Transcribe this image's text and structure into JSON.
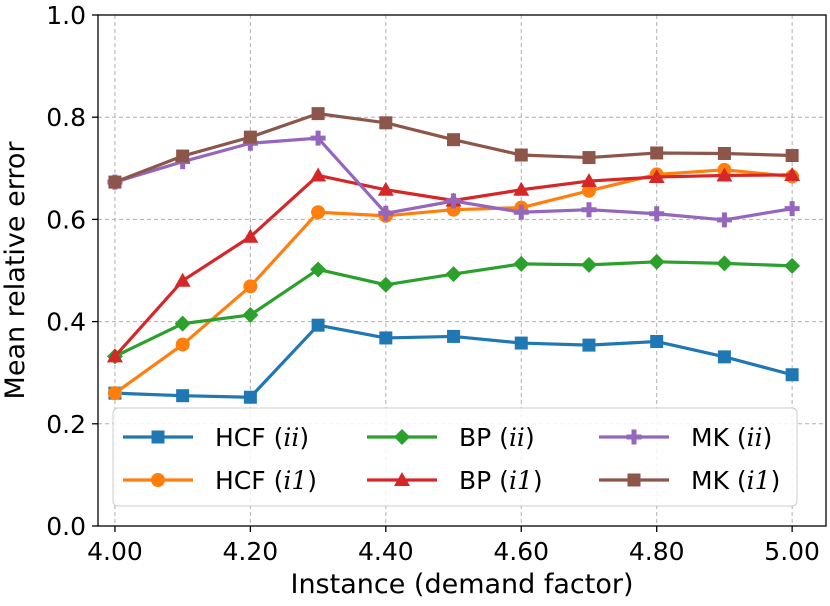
{
  "chart_data": {
    "type": "line",
    "title": "",
    "xlabel": "Instance (demand factor)",
    "ylabel": "Mean relative error",
    "xlim": [
      3.975,
      5.05
    ],
    "ylim": [
      0.0,
      1.0
    ],
    "grid": true,
    "legend_position": "bottom-right",
    "x": [
      4.0,
      4.1,
      4.2,
      4.3,
      4.4,
      4.5,
      4.6,
      4.7,
      4.8,
      4.9,
      5.0
    ],
    "x_ticks": [
      4.0,
      4.2,
      4.4,
      4.6,
      4.8,
      5.0
    ],
    "x_tick_labels": [
      "4.00",
      "4.20",
      "4.40",
      "4.60",
      "4.80",
      "5.00"
    ],
    "y_ticks": [
      0.0,
      0.2,
      0.4,
      0.6,
      0.8,
      1.0
    ],
    "y_tick_labels": [
      "0.0",
      "0.2",
      "0.4",
      "0.6",
      "0.8",
      "1.0"
    ],
    "series": [
      {
        "name": "HCF (ii)",
        "method": "HCF",
        "variant": "ii",
        "color": "#1f77b4",
        "marker": "square",
        "values": [
          0.26,
          0.255,
          0.252,
          0.393,
          0.368,
          0.371,
          0.358,
          0.354,
          0.361,
          0.331,
          0.296
        ]
      },
      {
        "name": "HCF (i1)",
        "method": "HCF",
        "variant": "i1",
        "color": "#ff7f0e",
        "marker": "circle",
        "values": [
          0.26,
          0.355,
          0.469,
          0.614,
          0.607,
          0.619,
          0.623,
          0.656,
          0.688,
          0.697,
          0.684
        ]
      },
      {
        "name": "BP (ii)",
        "method": "BP",
        "variant": "ii",
        "color": "#2ca02c",
        "marker": "diamond",
        "values": [
          0.332,
          0.396,
          0.413,
          0.502,
          0.472,
          0.493,
          0.513,
          0.511,
          0.517,
          0.514,
          0.509
        ]
      },
      {
        "name": "BP (i1)",
        "method": "BP",
        "variant": "i1",
        "color": "#d62728",
        "marker": "triangle",
        "values": [
          0.332,
          0.48,
          0.566,
          0.686,
          0.658,
          0.637,
          0.658,
          0.675,
          0.683,
          0.686,
          0.687
        ]
      },
      {
        "name": "MK (ii)",
        "method": "MK",
        "variant": "ii",
        "color": "#9467bd",
        "marker": "plus",
        "values": [
          0.673,
          0.713,
          0.749,
          0.759,
          0.612,
          0.636,
          0.614,
          0.619,
          0.611,
          0.599,
          0.621
        ]
      },
      {
        "name": "MK (i1)",
        "method": "MK",
        "variant": "i1",
        "color": "#8c564b",
        "marker": "square",
        "values": [
          0.673,
          0.724,
          0.761,
          0.807,
          0.789,
          0.756,
          0.726,
          0.721,
          0.73,
          0.729,
          0.725
        ]
      }
    ]
  }
}
